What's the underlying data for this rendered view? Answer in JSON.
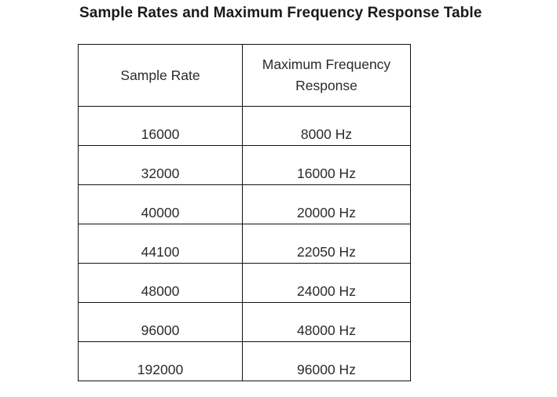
{
  "title": "Sample Rates and Maximum Frequency Response Table",
  "table": {
    "headers": [
      "Sample Rate",
      "Maximum Frequency Response"
    ],
    "rows": [
      [
        "16000",
        "8000 Hz"
      ],
      [
        "32000",
        "16000 Hz"
      ],
      [
        "40000",
        "20000 Hz"
      ],
      [
        "44100",
        "22050 Hz"
      ],
      [
        "48000",
        "24000 Hz"
      ],
      [
        "96000",
        "48000 Hz"
      ],
      [
        "192000",
        "96000 Hz"
      ]
    ]
  }
}
